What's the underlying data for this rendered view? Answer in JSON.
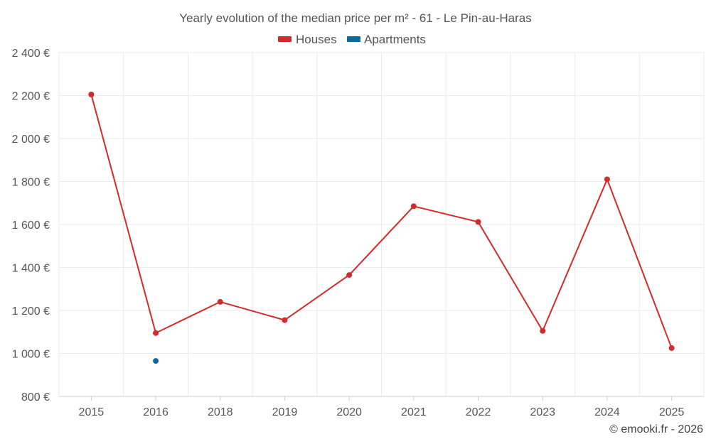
{
  "chart_data": {
    "type": "line",
    "title": "Yearly evolution of the median price per m² - 61 - Le Pin-au-Haras",
    "categories": [
      "2015",
      "2016",
      "2018",
      "2019",
      "2020",
      "2021",
      "2022",
      "2023",
      "2024",
      "2025"
    ],
    "series": [
      {
        "name": "Houses",
        "color": "#d32a2a",
        "values": [
          2205,
          1095,
          1240,
          1155,
          1365,
          1685,
          1612,
          1105,
          1810,
          1025
        ]
      },
      {
        "name": "Apartments",
        "color": "#0d6aa0",
        "values": [
          null,
          965,
          null,
          null,
          null,
          null,
          null,
          null,
          null,
          null
        ]
      }
    ],
    "y_ticks": [
      "800 €",
      "1 000 €",
      "1 200 €",
      "1 400 €",
      "1 600 €",
      "1 800 €",
      "2 000 €",
      "2 200 €",
      "2 400 €"
    ],
    "y_tick_values": [
      800,
      1000,
      1200,
      1400,
      1600,
      1800,
      2000,
      2200,
      2400
    ],
    "ylim": [
      800,
      2400
    ],
    "xlabel": "",
    "ylabel": "",
    "grid": true,
    "legend_position": "top-center",
    "credit": "© emooki.fr - 2026"
  }
}
